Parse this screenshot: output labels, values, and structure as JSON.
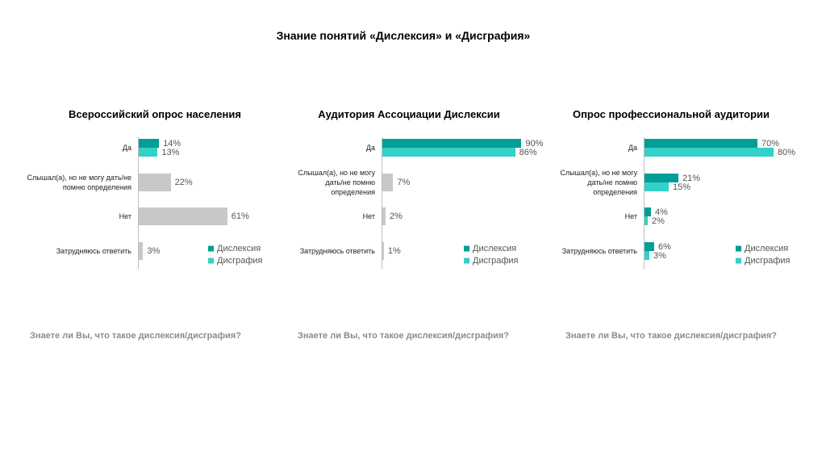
{
  "title": "Знание понятий «Дислексия» и «Дисграфия»",
  "chart_data": [
    {
      "type": "barh",
      "title": "Всероссийский опрос населения",
      "xlabel": "Знаете ли Вы, что такое дислексия/дисграфия?",
      "categories": [
        "Да",
        "Слышал(а), но не могу дать/не помню определения",
        "Нет",
        "Затрудняюсь ответить"
      ],
      "xlim": [
        0,
        100
      ],
      "series": [
        {
          "name": "Дислексия",
          "color": "#009e96",
          "values": [
            14,
            null,
            null,
            null
          ],
          "value_labels": [
            "14%",
            null,
            null,
            null
          ]
        },
        {
          "name": "Дисграфия",
          "color": "#33d1c9",
          "values": [
            13,
            null,
            null,
            null
          ],
          "value_labels": [
            "13%",
            null,
            null,
            null
          ]
        },
        {
          "color": "#c8c8c8",
          "values": [
            null,
            22,
            61,
            3
          ],
          "value_labels": [
            null,
            "22%",
            "61%",
            "3%"
          ]
        }
      ]
    },
    {
      "type": "barh",
      "title": "Аудитория Ассоциации Дислексии",
      "xlabel": "Знаете ли Вы, что такое дислексия/дисграфия?",
      "categories": [
        "Да",
        "Слышал(а), но не могу дать/не помню определения",
        "Нет",
        "Затрудняюсь ответить"
      ],
      "xlim": [
        0,
        94
      ],
      "series": [
        {
          "name": "Дислексия",
          "color": "#009e96",
          "values": [
            90,
            null,
            null,
            null
          ],
          "value_labels": [
            "90%",
            null,
            null,
            null
          ]
        },
        {
          "name": "Дисграфия",
          "color": "#33d1c9",
          "values": [
            86,
            null,
            null,
            null
          ],
          "value_labels": [
            "86%",
            null,
            null,
            null
          ]
        },
        {
          "color": "#c8c8c8",
          "values": [
            null,
            7,
            2,
            1
          ],
          "value_labels": [
            null,
            "7%",
            "2%",
            "1%"
          ]
        }
      ]
    },
    {
      "type": "barh",
      "title": "Опрос профессиональной аудитории",
      "xlabel": "Знаете ли Вы, что такое дислексия/дисграфия?",
      "categories": [
        "Да",
        "Слышал(а), но не могу дать/не помню определения",
        "Нет",
        "Затрудняюсь ответить"
      ],
      "xlim": [
        0,
        90
      ],
      "series": [
        {
          "name": "Дислексия",
          "color": "#009e96",
          "values": [
            70,
            21,
            4,
            6
          ],
          "value_labels": [
            "70%",
            "21%",
            "4%",
            "6%"
          ]
        },
        {
          "name": "Дисграфия",
          "color": "#33d1c9",
          "values": [
            80,
            15,
            2,
            3
          ],
          "value_labels": [
            "80%",
            "15%",
            "2%",
            "3%"
          ]
        }
      ]
    }
  ]
}
